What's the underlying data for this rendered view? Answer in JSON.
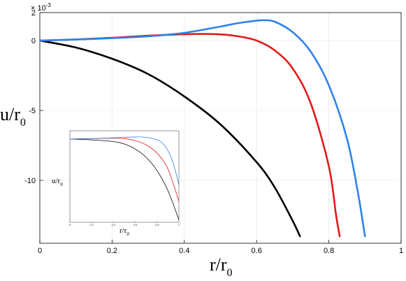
{
  "chart_data": [
    {
      "type": "line",
      "xlim": [
        0,
        1
      ],
      "ylim": [
        -14.5,
        2
      ],
      "xticks": [
        0,
        0.2,
        0.4,
        0.6,
        0.8,
        1
      ],
      "xtick_labels": [
        "0",
        "0.2",
        "0.4",
        "0.6",
        "0.8",
        "1"
      ],
      "yticks": [
        2,
        0,
        -5,
        -10
      ],
      "ytick_labels": [
        "2",
        "0",
        "-5",
        "-10"
      ],
      "y_multiplier": "× 10",
      "y_multiplier_exp": "-3",
      "xlabel_main": "r/r",
      "xlabel_sub": "0",
      "ylabel_main": "u/r",
      "ylabel_sub": "0",
      "grid": true,
      "series": [
        {
          "color": "#000000",
          "x": [
            0,
            0.1,
            0.2,
            0.3,
            0.4,
            0.5,
            0.6,
            0.65,
            0.7,
            0.72
          ],
          "y": [
            0,
            -0.5,
            -1.3,
            -2.4,
            -4.0,
            -6.0,
            -8.7,
            -10.5,
            -12.9,
            -14.0
          ]
        },
        {
          "color": "#e21a1a",
          "x": [
            0,
            0.1,
            0.2,
            0.3,
            0.4,
            0.45,
            0.5,
            0.55,
            0.6,
            0.65,
            0.7,
            0.75,
            0.8,
            0.82,
            0.83
          ],
          "y": [
            0,
            0.08,
            0.2,
            0.35,
            0.45,
            0.47,
            0.44,
            0.3,
            0.0,
            -0.7,
            -2.0,
            -4.5,
            -9.0,
            -12.5,
            -14.0
          ]
        },
        {
          "color": "#2f82e8",
          "x": [
            0,
            0.1,
            0.2,
            0.3,
            0.4,
            0.5,
            0.55,
            0.6,
            0.62,
            0.65,
            0.7,
            0.75,
            0.8,
            0.85,
            0.88,
            0.9
          ],
          "y": [
            0,
            0.07,
            0.17,
            0.3,
            0.55,
            1.0,
            1.25,
            1.42,
            1.45,
            1.35,
            0.6,
            -0.8,
            -3.2,
            -7.0,
            -10.8,
            -14.0
          ]
        }
      ]
    },
    {
      "type": "line",
      "xlim": [
        0,
        1
      ],
      "ylim": [
        -1,
        0.1
      ],
      "xticks": [
        0,
        0.2,
        0.4,
        0.6,
        0.8,
        1
      ],
      "xtick_labels": [
        "0",
        "0.2",
        "0.4",
        "0.6",
        "0.8",
        "1"
      ],
      "xlabel_main": "r/r",
      "xlabel_sub": "0",
      "ylabel_main": "u/r",
      "ylabel_sub": "0",
      "grid": false,
      "series": [
        {
          "color": "#000000",
          "x": [
            0,
            0.2,
            0.4,
            0.5,
            0.6,
            0.7,
            0.8,
            0.9,
            1.0
          ],
          "y": [
            0,
            -0.01,
            -0.03,
            -0.06,
            -0.12,
            -0.22,
            -0.38,
            -0.62,
            -0.97
          ]
        },
        {
          "color": "#e21a1a",
          "x": [
            0,
            0.2,
            0.4,
            0.5,
            0.6,
            0.7,
            0.8,
            0.9,
            1.0
          ],
          "y": [
            0,
            0.005,
            0.01,
            0.005,
            -0.02,
            -0.07,
            -0.17,
            -0.36,
            -0.75
          ]
        },
        {
          "color": "#2f82e8",
          "x": [
            0,
            0.2,
            0.4,
            0.6,
            0.7,
            0.8,
            0.85,
            0.9,
            0.95,
            1.0
          ],
          "y": [
            0,
            0.005,
            0.015,
            0.025,
            0.02,
            -0.01,
            -0.05,
            -0.14,
            -0.3,
            -0.55
          ]
        }
      ]
    }
  ]
}
